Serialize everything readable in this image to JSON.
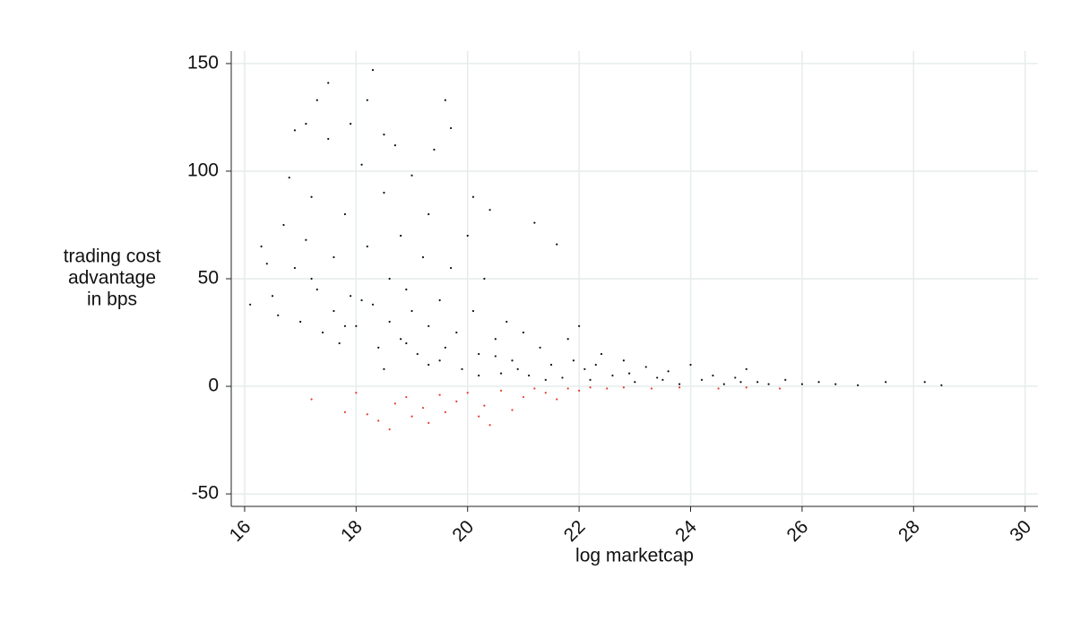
{
  "chart_data": {
    "type": "scatter",
    "xlabel": "log marketcap",
    "ylabel": [
      "trading cost",
      "advantage",
      "in bps"
    ],
    "xlim": [
      15.76,
      30.23
    ],
    "ylim": [
      -55.8,
      155.8
    ],
    "xticks": [
      16,
      18,
      20,
      22,
      24,
      26,
      28,
      30
    ],
    "yticks": [
      -50,
      0,
      50,
      100,
      150
    ],
    "grid": true,
    "series": [
      {
        "color": "#111111",
        "x": [
          16.1,
          16.3,
          16.4,
          16.5,
          16.6,
          16.7,
          16.8,
          16.9,
          16.9,
          17.0,
          17.1,
          17.1,
          17.2,
          17.3,
          17.3,
          17.4,
          17.5,
          17.5,
          17.6,
          17.6,
          17.7,
          17.8,
          17.9,
          17.9,
          18.0,
          18.1,
          18.2,
          18.2,
          18.3,
          18.3,
          18.4,
          18.5,
          18.5,
          18.6,
          18.6,
          18.7,
          18.8,
          18.8,
          18.9,
          19.0,
          19.0,
          19.1,
          19.2,
          19.3,
          19.3,
          19.4,
          19.5,
          19.5,
          19.6,
          19.7,
          19.7,
          19.8,
          19.9,
          20.0,
          20.1,
          20.1,
          20.2,
          20.3,
          20.4,
          20.5,
          20.6,
          20.7,
          20.8,
          21.0,
          21.1,
          21.2,
          21.3,
          21.5,
          21.6,
          21.7,
          21.8,
          22.0,
          22.1,
          22.2,
          22.4,
          22.6,
          22.8,
          23.0,
          23.2,
          23.4,
          23.6,
          23.8,
          24.0,
          24.2,
          24.4,
          24.6,
          24.8,
          25.0,
          25.2,
          25.4,
          25.7,
          26.0,
          26.3,
          26.6,
          27.0,
          27.5,
          28.2,
          28.5,
          18.1,
          18.9,
          19.6,
          20.2,
          20.9,
          21.4,
          22.3,
          22.9,
          17.2,
          17.8,
          18.5,
          19.3,
          20.5,
          21.9,
          23.5,
          24.9
        ],
        "y": [
          38,
          65,
          57,
          42,
          33,
          75,
          97,
          119,
          55,
          30,
          68,
          122,
          88,
          133,
          45,
          25,
          141,
          115,
          60,
          35,
          20,
          80,
          122,
          42,
          28,
          103,
          133,
          65,
          147,
          38,
          18,
          117,
          90,
          50,
          30,
          112,
          70,
          22,
          45,
          98,
          35,
          15,
          60,
          80,
          28,
          110,
          40,
          12,
          133,
          120,
          55,
          25,
          8,
          70,
          88,
          35,
          15,
          50,
          82,
          22,
          6,
          30,
          12,
          25,
          5,
          76,
          18,
          10,
          66,
          4,
          22,
          28,
          8,
          3,
          15,
          5,
          12,
          2,
          9,
          4,
          7,
          1,
          10,
          3,
          5,
          1,
          4,
          8,
          2,
          1,
          3,
          1,
          2,
          1,
          0.5,
          2,
          2,
          0.5,
          40,
          20,
          18,
          5,
          8,
          3,
          10,
          6,
          50,
          28,
          8,
          10,
          14,
          12,
          3,
          2
        ]
      },
      {
        "color": "#e8392b",
        "x": [
          17.2,
          17.8,
          18.0,
          18.2,
          18.4,
          18.6,
          18.7,
          18.9,
          19.0,
          19.2,
          19.3,
          19.5,
          19.6,
          19.8,
          20.0,
          20.2,
          20.3,
          20.4,
          20.6,
          20.8,
          21.0,
          21.2,
          21.4,
          21.6,
          21.8,
          22.0,
          22.2,
          22.5,
          22.8,
          23.3,
          23.8,
          24.5,
          25.0,
          25.6
        ],
        "y": [
          -6,
          -12,
          -3,
          -13,
          -16,
          -20,
          -8,
          -5,
          -14,
          -10,
          -17,
          -4,
          -12,
          -7,
          -3,
          -14,
          -9,
          -18,
          -2,
          -11,
          -5,
          -1,
          -3,
          -6,
          -1,
          -2,
          -0.5,
          -1,
          -0.5,
          -1,
          -0.5,
          -1,
          -0.5,
          -1
        ]
      }
    ]
  }
}
